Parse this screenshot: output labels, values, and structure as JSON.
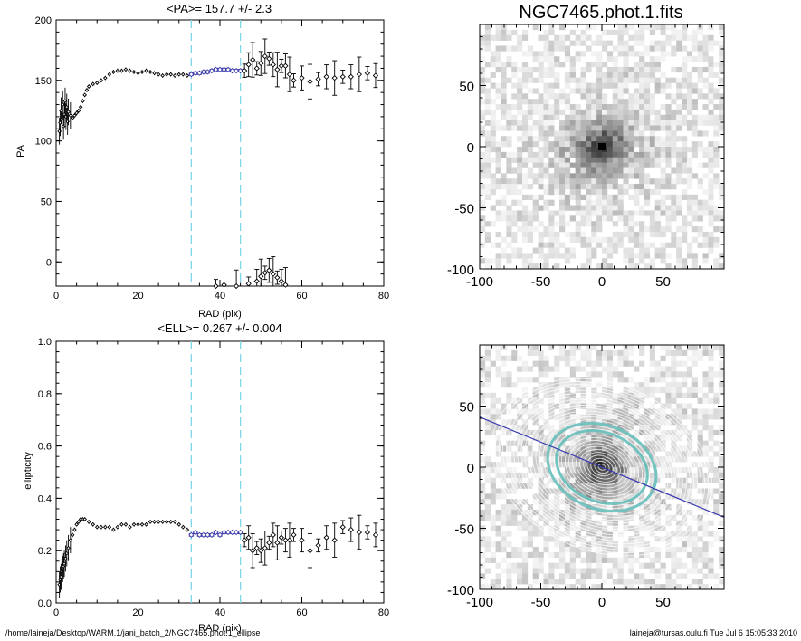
{
  "footer": {
    "path": "/home/laineja/Desktop/WARM.1/jani_batch_2/NGC7465.phot.1_ellipse",
    "user_time": "laineja@tursas.oulu.fi  Tue Jul  6 15:05:33 2010"
  },
  "colors": {
    "fit_points": "#3a3aaa",
    "boundary_lines": "#80d8e8",
    "axis_line": "#3838b0",
    "highlight_ring": "#66c0bb"
  },
  "chart_data": [
    {
      "id": "pa_profile",
      "type": "scatter",
      "title": "<PA>= 157.7 +/-   2.3",
      "xlabel": "RAD (pix)",
      "ylabel": "PA",
      "xlim": [
        0,
        80
      ],
      "ylim": [
        -20,
        200
      ],
      "xticks": [
        "0",
        "20",
        "40",
        "60",
        "80"
      ],
      "yticks": [
        "0",
        "50",
        "100",
        "150",
        "200"
      ],
      "fit_range": [
        33,
        45
      ],
      "series": [
        {
          "name": "inner",
          "x": [
            0.8,
            1.0,
            1.2,
            1.4,
            1.6,
            1.8,
            2.0,
            2.2,
            2.4,
            2.6,
            2.8,
            3.0,
            3.5,
            4.0,
            4.5,
            5.0,
            5.5,
            6.0,
            6.5,
            7.0,
            7.5,
            8,
            9,
            10,
            11,
            12,
            13,
            14,
            15,
            16,
            17,
            18,
            19,
            20,
            21,
            22,
            23,
            24,
            25,
            26,
            27,
            28,
            29,
            30,
            31,
            32
          ],
          "y": [
            108,
            115,
            125,
            118,
            130,
            112,
            122,
            133,
            120,
            128,
            116,
            124,
            121,
            119,
            121,
            123,
            125,
            128,
            133,
            138,
            142,
            145,
            147,
            148,
            150,
            152,
            155,
            157,
            158,
            158,
            159,
            158,
            157,
            156,
            157,
            158,
            157,
            156,
            155,
            154,
            155,
            155,
            154,
            155,
            155,
            154
          ]
        },
        {
          "name": "fit",
          "x": [
            33,
            34,
            35,
            36,
            37,
            38,
            39,
            40,
            41,
            42,
            43,
            44,
            45
          ],
          "y": [
            155,
            156,
            156,
            157,
            157,
            158,
            159,
            159,
            159,
            159,
            158,
            158,
            158
          ]
        },
        {
          "name": "outer",
          "x": [
            46,
            47,
            48,
            49,
            50,
            51,
            52,
            53,
            54,
            55,
            56,
            57,
            58,
            60,
            62,
            64,
            66,
            68,
            70,
            72,
            74,
            76,
            78
          ],
          "y": [
            158,
            163,
            167,
            160,
            164,
            170,
            168,
            163,
            159,
            162,
            162,
            155,
            150,
            152,
            149,
            151,
            153,
            152,
            153,
            153,
            155,
            156,
            154
          ]
        },
        {
          "name": "outer_wrapped",
          "x": [
            39,
            41,
            44,
            47,
            49,
            50,
            51,
            52,
            53,
            54,
            55,
            56
          ],
          "y": [
            -20,
            -19,
            -21,
            -18,
            -16,
            -12,
            -9,
            -7,
            -10,
            -13,
            -16,
            -19
          ]
        }
      ]
    },
    {
      "id": "ell_profile",
      "type": "scatter",
      "title": "<ELL>= 0.267 +/-  0.004",
      "xlabel": "RAD (pix)",
      "ylabel": "ellipticity",
      "xlim": [
        0,
        80
      ],
      "ylim": [
        0,
        1
      ],
      "xticks": [
        "0",
        "20",
        "40",
        "60",
        "80"
      ],
      "yticks": [
        "0.0",
        "0.2",
        "0.4",
        "0.6",
        "0.8",
        "1.0"
      ],
      "fit_range": [
        33,
        45
      ],
      "series": [
        {
          "name": "inner",
          "x": [
            0.8,
            1.0,
            1.2,
            1.4,
            1.6,
            1.8,
            2.0,
            2.3,
            2.6,
            3.0,
            3.5,
            4.0,
            4.5,
            5.0,
            5.5,
            6.0,
            6.5,
            7,
            8,
            9,
            10,
            11,
            12,
            13,
            14,
            15,
            16,
            17,
            18,
            19,
            20,
            21,
            22,
            23,
            24,
            25,
            26,
            27,
            28,
            29,
            30,
            31,
            32
          ],
          "y": [
            0.07,
            0.09,
            0.1,
            0.12,
            0.13,
            0.14,
            0.15,
            0.17,
            0.19,
            0.21,
            0.24,
            0.26,
            0.28,
            0.3,
            0.31,
            0.32,
            0.32,
            0.32,
            0.31,
            0.3,
            0.29,
            0.29,
            0.29,
            0.29,
            0.28,
            0.29,
            0.3,
            0.3,
            0.29,
            0.3,
            0.3,
            0.3,
            0.3,
            0.31,
            0.31,
            0.31,
            0.31,
            0.31,
            0.31,
            0.31,
            0.3,
            0.29,
            0.28
          ]
        },
        {
          "name": "fit",
          "x": [
            33,
            34,
            35,
            36,
            37,
            38,
            39,
            40,
            41,
            42,
            43,
            44,
            45
          ],
          "y": [
            0.26,
            0.27,
            0.26,
            0.26,
            0.26,
            0.26,
            0.27,
            0.26,
            0.27,
            0.27,
            0.27,
            0.27,
            0.27
          ]
        },
        {
          "name": "outer",
          "x": [
            46,
            47,
            48,
            49,
            50,
            51,
            52,
            53,
            54,
            55,
            56,
            57,
            58,
            60,
            62,
            64,
            66,
            68,
            70,
            72,
            74,
            76,
            78
          ],
          "y": [
            0.24,
            0.25,
            0.2,
            0.21,
            0.2,
            0.21,
            0.23,
            0.26,
            0.23,
            0.25,
            0.24,
            0.24,
            0.26,
            0.24,
            0.2,
            0.22,
            0.25,
            0.24,
            0.29,
            0.28,
            0.27,
            0.27,
            0.26
          ]
        }
      ]
    },
    {
      "id": "galaxy_image",
      "type": "heatmap",
      "title": "NGC7465.phot.1.fits",
      "xlim": [
        -100,
        100
      ],
      "ylim": [
        -100,
        100
      ],
      "xticks": [
        "-100",
        "-50",
        "0",
        "50"
      ],
      "yticks": [
        "-100",
        "-50",
        "0",
        "50"
      ]
    },
    {
      "id": "galaxy_isophotes",
      "type": "heatmap",
      "title": "",
      "xlim": [
        -100,
        100
      ],
      "ylim": [
        -100,
        100
      ],
      "xticks": [
        "-100",
        "-50",
        "0",
        "50"
      ],
      "yticks": [
        "-100",
        "-50",
        "0",
        "50"
      ],
      "major_axis_pa_deg": 157.7,
      "mean_ellipticity": 0.267
    }
  ]
}
